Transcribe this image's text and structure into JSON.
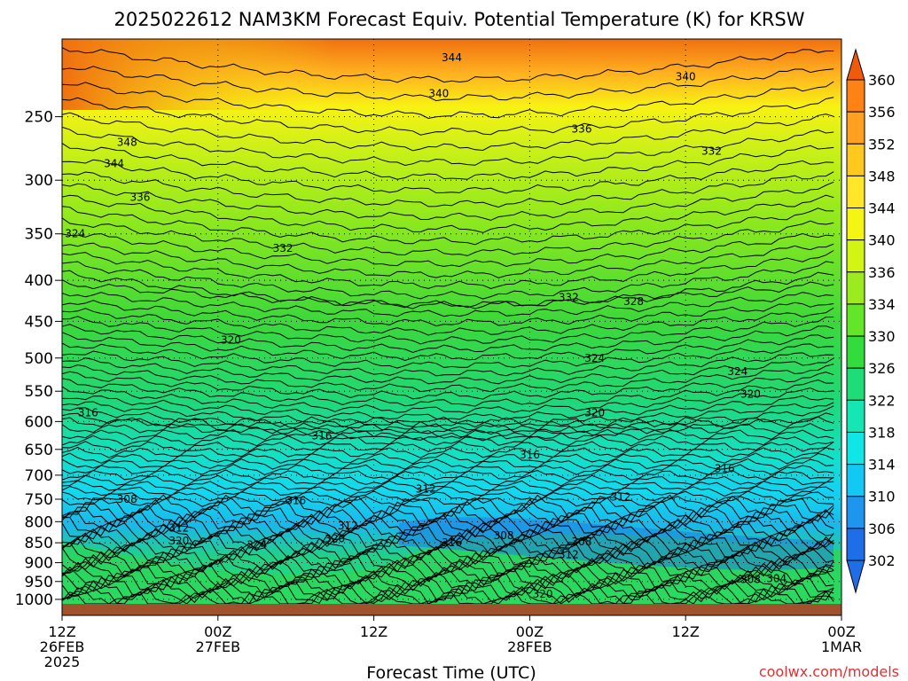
{
  "chart_data": {
    "type": "heatmap",
    "title": "2025022612 NAM3KM Forecast Equiv. Potential Temperature (K) for KRSW",
    "xlabel": "Forecast Time (UTC)",
    "ylabel": "",
    "x_ticks": [
      {
        "hour": 0,
        "lines": [
          "12Z",
          "26FEB",
          "2025"
        ]
      },
      {
        "hour": 12,
        "lines": [
          "00Z",
          "27FEB"
        ]
      },
      {
        "hour": 24,
        "lines": [
          "12Z"
        ]
      },
      {
        "hour": 36,
        "lines": [
          "00Z",
          "28FEB"
        ]
      },
      {
        "hour": 48,
        "lines": [
          "12Z"
        ]
      },
      {
        "hour": 60,
        "lines": [
          "00Z",
          "1MAR"
        ]
      }
    ],
    "xlim": [
      0,
      60
    ],
    "y_ticks": [
      250,
      300,
      350,
      400,
      450,
      500,
      550,
      600,
      650,
      700,
      750,
      800,
      850,
      900,
      950,
      1000
    ],
    "ylim_hPa": [
      200,
      1013
    ],
    "y_scale": "log",
    "grid": "dotted",
    "colorbar": {
      "labels": [
        302,
        306,
        310,
        314,
        318,
        322,
        326,
        330,
        334,
        336,
        340,
        344,
        348,
        352,
        356,
        360
      ],
      "colors": [
        "#1E6EE8",
        "#1E96F0",
        "#14C8F5",
        "#10E6E6",
        "#14E6B4",
        "#1EDC78",
        "#32DC3C",
        "#64E628",
        "#9BEB1E",
        "#D2F514",
        "#F5F514",
        "#FFE628",
        "#FFC81E",
        "#FFA01E",
        "#FF8214",
        "#F05A0A"
      ],
      "extend": "both"
    },
    "contour_labels": [
      {
        "hour": 30,
        "p": 211,
        "v": 344
      },
      {
        "hour": 48,
        "p": 223,
        "v": 340
      },
      {
        "hour": 29,
        "p": 234,
        "v": 340
      },
      {
        "hour": 40,
        "p": 259,
        "v": 336
      },
      {
        "hour": 5,
        "p": 269,
        "v": 348
      },
      {
        "hour": 4,
        "p": 286,
        "v": 344
      },
      {
        "hour": 50,
        "p": 276,
        "v": 332
      },
      {
        "hour": 6,
        "p": 315,
        "v": 336
      },
      {
        "hour": 1,
        "p": 350,
        "v": 324
      },
      {
        "hour": 17,
        "p": 365,
        "v": 332
      },
      {
        "hour": 39,
        "p": 420,
        "v": 332
      },
      {
        "hour": 44,
        "p": 425,
        "v": 328
      },
      {
        "hour": 13,
        "p": 475,
        "v": 320
      },
      {
        "hour": 41,
        "p": 500,
        "v": 324
      },
      {
        "hour": 52,
        "p": 520,
        "v": 324
      },
      {
        "hour": 53,
        "p": 555,
        "v": 320
      },
      {
        "hour": 41,
        "p": 585,
        "v": 320
      },
      {
        "hour": 2,
        "p": 585,
        "v": 316
      },
      {
        "hour": 20,
        "p": 625,
        "v": 316
      },
      {
        "hour": 36,
        "p": 660,
        "v": 316
      },
      {
        "hour": 51,
        "p": 687,
        "v": 316
      },
      {
        "hour": 28,
        "p": 728,
        "v": 312
      },
      {
        "hour": 43,
        "p": 745,
        "v": 312
      },
      {
        "hour": 5,
        "p": 750,
        "v": 308
      },
      {
        "hour": 18,
        "p": 753,
        "v": 316
      },
      {
        "hour": 9,
        "p": 815,
        "v": 312
      },
      {
        "hour": 22,
        "p": 810,
        "v": 312
      },
      {
        "hour": 9,
        "p": 845,
        "v": 320
      },
      {
        "hour": 21,
        "p": 840,
        "v": 320
      },
      {
        "hour": 15,
        "p": 855,
        "v": 324
      },
      {
        "hour": 30,
        "p": 850,
        "v": 316
      },
      {
        "hour": 34,
        "p": 833,
        "v": 308
      },
      {
        "hour": 40,
        "p": 848,
        "v": 308
      },
      {
        "hour": 39,
        "p": 880,
        "v": 312
      },
      {
        "hour": 53,
        "p": 945,
        "v": 308
      },
      {
        "hour": 55,
        "p": 942,
        "v": 304
      },
      {
        "hour": 37,
        "p": 985,
        "v": 320
      }
    ]
  },
  "watermark": "coolwx.com/models"
}
